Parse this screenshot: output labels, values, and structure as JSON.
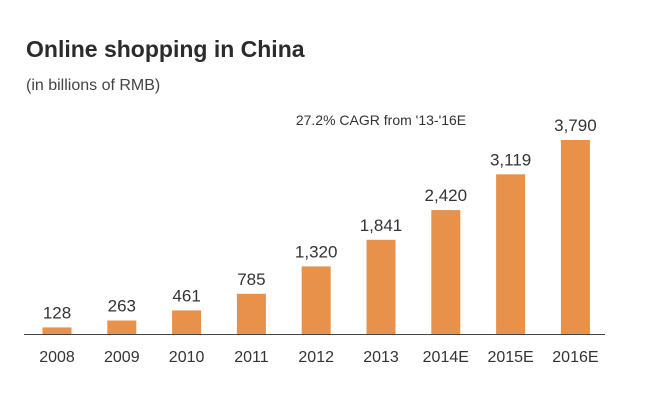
{
  "chart_data": {
    "type": "bar",
    "title": "Online shopping in China",
    "subtitle": "(in billions of RMB)",
    "annotation": "27.2% CAGR from '13-'16E",
    "categories": [
      "2008",
      "2009",
      "2010",
      "2011",
      "2012",
      "2013",
      "2014E",
      "2015E",
      "2016E"
    ],
    "values": [
      128,
      263,
      461,
      785,
      1320,
      1841,
      2420,
      3119,
      3790
    ],
    "value_labels": [
      "128",
      "263",
      "461",
      "785",
      "1,320",
      "1,841",
      "2,420",
      "3,119",
      "3,790"
    ],
    "xlabel": "",
    "ylabel": "",
    "ylim": [
      0,
      3790
    ],
    "grid": false,
    "legend": "none",
    "bar_color": "#e8914a",
    "axis_color": "#444444"
  }
}
